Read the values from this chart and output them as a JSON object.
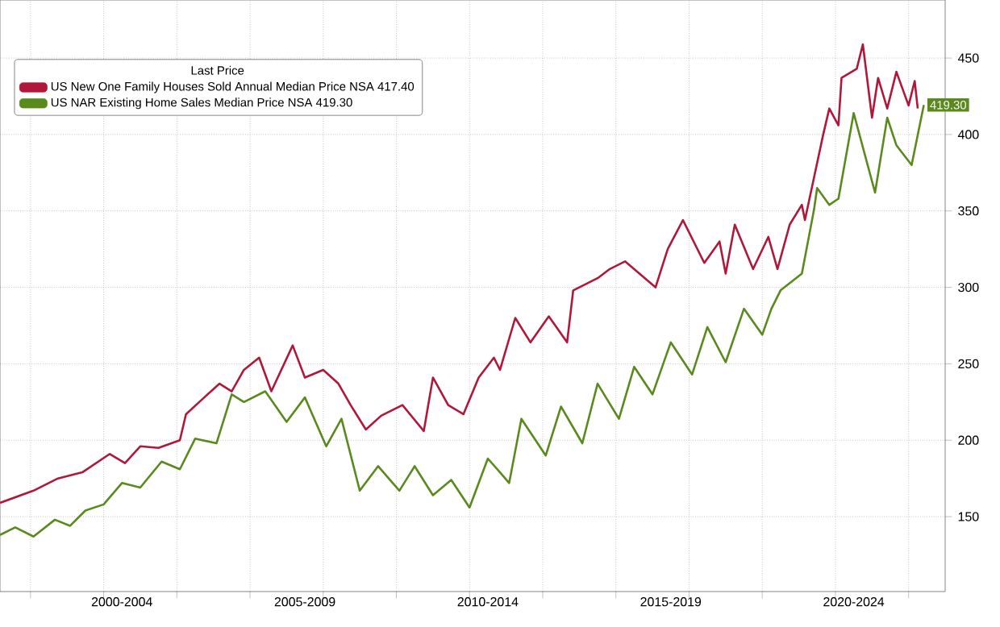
{
  "chart_data": {
    "type": "line",
    "legend_title": "Last Price",
    "legend": "top left",
    "grid": true,
    "xlim": [
      "1999-03",
      "2025-01"
    ],
    "ylim": [
      101,
      488
    ],
    "xticks": [
      {
        "value": "2000",
        "label": null
      },
      {
        "value": "2002",
        "label": null
      },
      {
        "value": "2004",
        "label": null
      },
      {
        "value": "2006",
        "label": null
      },
      {
        "value": "2008",
        "label": null
      },
      {
        "value": "2010",
        "label": null
      },
      {
        "value": "2012",
        "label": null
      },
      {
        "value": "2014",
        "label": null
      },
      {
        "value": "2016",
        "label": null
      },
      {
        "value": "2018",
        "label": null
      },
      {
        "value": "2020",
        "label": null
      },
      {
        "value": "2022",
        "label": null
      },
      {
        "value": "2024",
        "label": null
      },
      {
        "value": "2002-07",
        "label": "2000-2004"
      },
      {
        "value": "2007-07",
        "label": "2005-2009"
      },
      {
        "value": "2012-07",
        "label": "2010-2014"
      },
      {
        "value": "2017-07",
        "label": "2015-2019"
      },
      {
        "value": "2022-07",
        "label": "2020-2024"
      }
    ],
    "yticks": [
      150,
      200,
      250,
      300,
      350,
      400,
      450
    ],
    "series": [
      {
        "name": "US New One Family Houses Sold Annual Median Price NSA 417.40",
        "color": "#b0173a",
        "x": [
          "1999-03",
          "2000-02",
          "2000-10",
          "2001-06",
          "2002-03",
          "2002-08",
          "2003-01",
          "2003-07",
          "2004-02",
          "2004-04",
          "2004-10",
          "2005-03",
          "2005-07",
          "2005-11",
          "2006-04",
          "2006-08",
          "2007-03",
          "2007-07",
          "2008-01",
          "2008-06",
          "2008-10",
          "2009-03",
          "2009-08",
          "2010-03",
          "2010-10",
          "2011-01",
          "2011-06",
          "2011-11",
          "2012-04",
          "2012-09",
          "2012-11",
          "2013-04",
          "2013-09",
          "2014-03",
          "2014-09",
          "2014-11",
          "2015-07",
          "2015-11",
          "2016-04",
          "2017-02",
          "2017-06",
          "2017-11",
          "2018-06",
          "2018-11",
          "2019-01",
          "2019-04",
          "2019-10",
          "2020-03",
          "2020-06",
          "2020-10",
          "2021-02",
          "2021-03",
          "2021-06",
          "2021-09",
          "2021-11",
          "2022-02",
          "2022-03",
          "2022-08",
          "2022-10",
          "2023-01",
          "2023-03",
          "2023-06",
          "2023-09",
          "2024-01",
          "2024-03",
          "2024-04"
        ],
        "values": [
          159,
          167,
          175,
          179,
          191,
          185,
          196,
          195,
          200,
          217,
          228,
          237,
          232,
          246,
          254,
          232,
          262,
          241,
          246,
          237,
          223,
          207,
          216,
          223,
          206,
          241,
          223,
          217,
          241,
          254,
          246,
          280,
          264,
          281,
          264,
          298,
          306,
          312,
          317,
          300,
          325,
          344,
          316,
          330,
          309,
          341,
          312,
          333,
          312,
          341,
          354,
          344,
          372,
          400,
          417,
          406,
          437,
          443,
          459,
          411,
          437,
          417,
          441,
          419,
          435,
          417
        ]
      },
      {
        "name": "US NAR Existing Home Sales Median Price NSA 419.30",
        "color": "#5a8a1e",
        "x": [
          "1999-03",
          "1999-08",
          "2000-02",
          "2000-09",
          "2001-02",
          "2001-07",
          "2002-01",
          "2002-07",
          "2003-01",
          "2003-08",
          "2004-02",
          "2004-07",
          "2005-02",
          "2005-07",
          "2005-11",
          "2006-06",
          "2007-01",
          "2007-07",
          "2008-02",
          "2008-07",
          "2009-01",
          "2009-07",
          "2010-02",
          "2010-07",
          "2011-01",
          "2011-07",
          "2012-01",
          "2012-07",
          "2012-11",
          "2013-02",
          "2013-06",
          "2014-02",
          "2014-07",
          "2015-02",
          "2015-07",
          "2016-02",
          "2016-07",
          "2017-01",
          "2017-07",
          "2018-02",
          "2018-07",
          "2019-01",
          "2019-07",
          "2020-01",
          "2020-04",
          "2020-07",
          "2021-02",
          "2021-06",
          "2021-07",
          "2021-11",
          "2022-02",
          "2022-07",
          "2023-02",
          "2023-06",
          "2023-09",
          "2024-02",
          "2024-06"
        ],
        "values": [
          138,
          143,
          137,
          148,
          144,
          154,
          158,
          172,
          169,
          186,
          181,
          201,
          198,
          230,
          225,
          232,
          212,
          228,
          196,
          214,
          167,
          183,
          167,
          183,
          164,
          174,
          156,
          188,
          179,
          172,
          214,
          190,
          222,
          198,
          237,
          214,
          248,
          230,
          264,
          243,
          274,
          251,
          286,
          269,
          286,
          298,
          309,
          351,
          365,
          354,
          358,
          414,
          362,
          411,
          393,
          380,
          419.3
        ],
        "value_labels": [
          null,
          null,
          null,
          null,
          null,
          null,
          null,
          null,
          null,
          null,
          null,
          null,
          null,
          null,
          null,
          null,
          null,
          null,
          null,
          null,
          null,
          null,
          null,
          null,
          null,
          null,
          null,
          null,
          null,
          null,
          null,
          null,
          null,
          null,
          null,
          null,
          null,
          null,
          null,
          null,
          null,
          null,
          null,
          null,
          null,
          null,
          null,
          null,
          null,
          null,
          null,
          null,
          null,
          null,
          null,
          null,
          "419.30"
        ]
      }
    ]
  }
}
